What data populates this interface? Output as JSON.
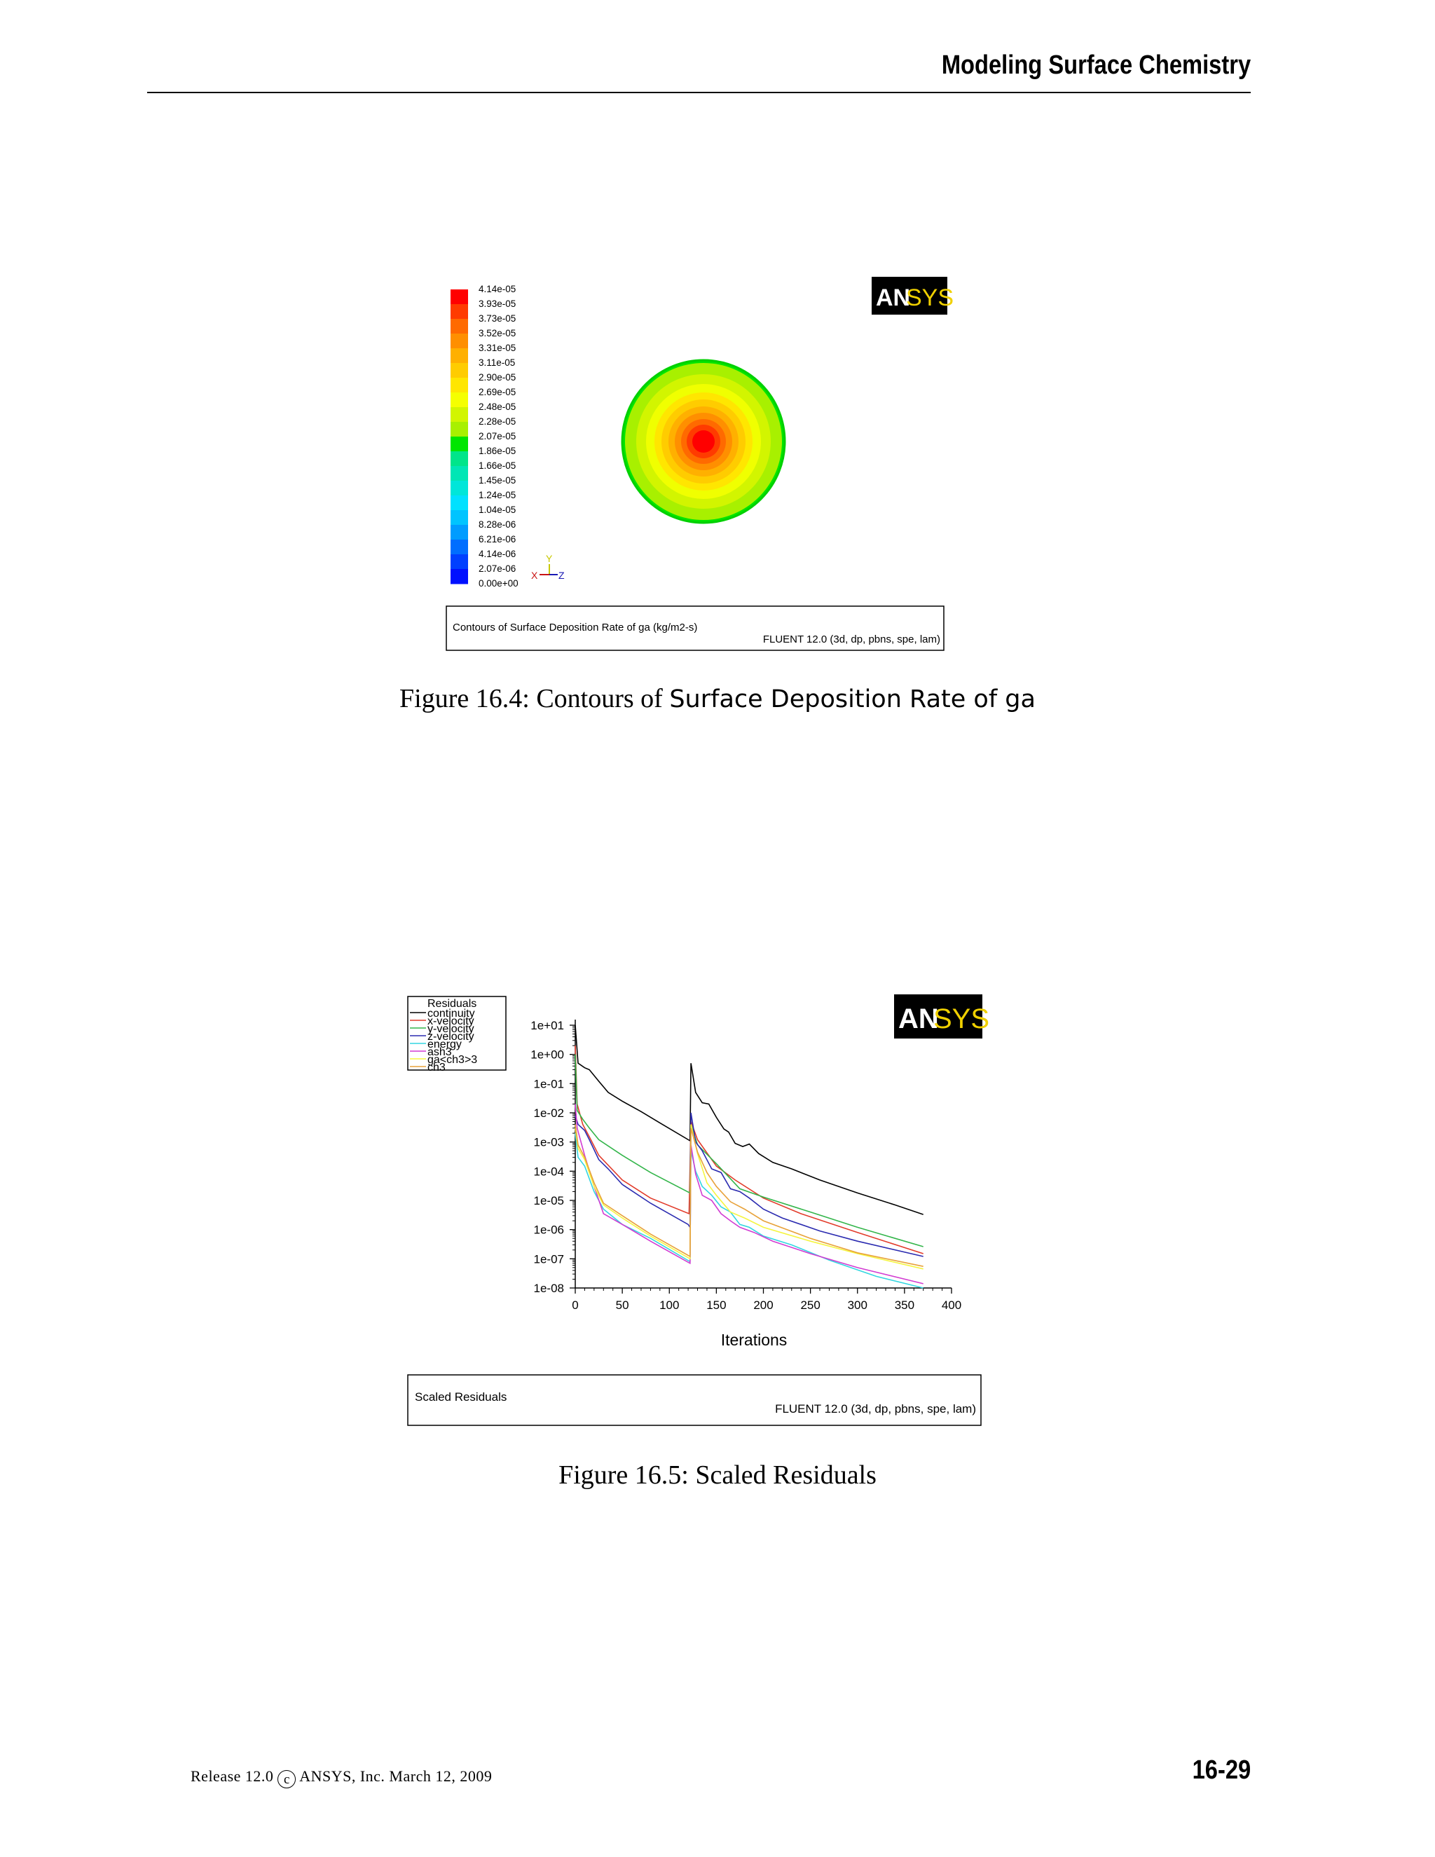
{
  "header": {
    "title": "Modeling Surface Chemistry"
  },
  "figure1": {
    "colorbar": {
      "labels": [
        "4.14e-05",
        "3.93e-05",
        "3.73e-05",
        "3.52e-05",
        "3.31e-05",
        "3.11e-05",
        "2.90e-05",
        "2.69e-05",
        "2.48e-05",
        "2.28e-05",
        "2.07e-05",
        "1.86e-05",
        "1.66e-05",
        "1.45e-05",
        "1.24e-05",
        "1.04e-05",
        "8.28e-06",
        "6.21e-06",
        "4.14e-06",
        "2.07e-06",
        "0.00e+00"
      ],
      "colors": [
        "#ff0000",
        "#ff3b00",
        "#ff6a00",
        "#ff8f00",
        "#ffb000",
        "#ffcc00",
        "#ffe600",
        "#f5ff00",
        "#d2f500",
        "#a8f000",
        "#00e600",
        "#00e58a",
        "#00e6b5",
        "#00e6d9",
        "#00e1ff",
        "#00c4ff",
        "#009cff",
        "#006eff",
        "#0040ff",
        "#0010ff"
      ]
    },
    "axes": {
      "y": "Y",
      "x": "X",
      "z": "Z"
    },
    "logo": {
      "an": "AN",
      "sys": "SYS"
    },
    "info_box": {
      "title": "Contours of Surface Deposition Rate of ga (kg/m2-s)",
      "solver": "FLUENT 12.0 (3d, dp, pbns, spe, lam)"
    },
    "caption": {
      "prefix": "Figure 16.4:  Contours of ",
      "name": "Surface Deposition Rate of ga"
    }
  },
  "figure2": {
    "logo": {
      "an": "AN",
      "sys": "SYS"
    },
    "info_box": {
      "title": "Scaled Residuals",
      "solver": "FLUENT 12.0 (3d, dp, pbns, spe, lam)"
    },
    "caption": "Figure 16.5:  Scaled Residuals"
  },
  "chart_data": {
    "type": "line",
    "xlabel": "Iterations",
    "ylabel": "",
    "y_scale": "log",
    "xlim": [
      0,
      400
    ],
    "ylim": [
      1e-08,
      10
    ],
    "x_ticks": [
      "0",
      "50",
      "100",
      "150",
      "200",
      "250",
      "300",
      "350",
      "400"
    ],
    "y_ticks": [
      "1e+01",
      "1e+00",
      "1e-01",
      "1e-02",
      "1e-03",
      "1e-04",
      "1e-05",
      "1e-06",
      "1e-07",
      "1e-08"
    ],
    "legend": {
      "title": "Residuals",
      "position": "top-left"
    },
    "series": [
      {
        "name": "continuity",
        "color": "#000000",
        "points": [
          [
            0,
            10
          ],
          [
            3,
            0.5
          ],
          [
            10,
            0.35
          ],
          [
            15,
            0.3
          ],
          [
            25,
            0.12
          ],
          [
            35,
            0.05
          ],
          [
            50,
            0.025
          ],
          [
            70,
            0.011
          ],
          [
            90,
            0.0045
          ],
          [
            122,
            0.0011
          ],
          [
            123,
            0.5
          ],
          [
            128,
            0.05
          ],
          [
            135,
            0.022
          ],
          [
            142,
            0.02
          ],
          [
            150,
            0.007
          ],
          [
            158,
            0.0028
          ],
          [
            163,
            0.0022
          ],
          [
            170,
            0.0009
          ],
          [
            178,
            0.0007
          ],
          [
            185,
            0.00085
          ],
          [
            195,
            0.0004
          ],
          [
            210,
            0.0002
          ],
          [
            230,
            0.00012
          ],
          [
            260,
            5e-05
          ],
          [
            300,
            1.8e-05
          ],
          [
            340,
            7e-06
          ],
          [
            370,
            3.3e-06
          ]
        ]
      },
      {
        "name": "x-velocity",
        "color": "#e23b2a",
        "points": [
          [
            0,
            2
          ],
          [
            2,
            0.02
          ],
          [
            8,
            0.004
          ],
          [
            15,
            0.0015
          ],
          [
            25,
            0.00035
          ],
          [
            50,
            5e-05
          ],
          [
            80,
            1.2e-05
          ],
          [
            121,
            3.5e-06
          ],
          [
            123,
            0.005
          ],
          [
            130,
            0.0012
          ],
          [
            150,
            0.00015
          ],
          [
            170,
            5e-05
          ],
          [
            200,
            1.2e-05
          ],
          [
            240,
            3.5e-06
          ],
          [
            300,
            8e-07
          ],
          [
            370,
            1.5e-07
          ]
        ]
      },
      {
        "name": "y-velocity",
        "color": "#33b54a",
        "points": [
          [
            0,
            1
          ],
          [
            2,
            0.012
          ],
          [
            8,
            0.006
          ],
          [
            15,
            0.003
          ],
          [
            25,
            0.0012
          ],
          [
            50,
            0.00035
          ],
          [
            80,
            9e-05
          ],
          [
            122,
            1.8e-05
          ],
          [
            123,
            0.004
          ],
          [
            130,
            0.0008
          ],
          [
            150,
            0.00018
          ],
          [
            175,
            2.5e-05
          ],
          [
            200,
            1.3e-05
          ],
          [
            250,
            4e-06
          ],
          [
            300,
            1.2e-06
          ],
          [
            370,
            2.6e-07
          ]
        ]
      },
      {
        "name": "z-velocity",
        "color": "#2b2bb0",
        "points": [
          [
            0,
            0.008
          ],
          [
            3,
            0.004
          ],
          [
            10,
            0.0025
          ],
          [
            15,
            0.0012
          ],
          [
            25,
            0.00025
          ],
          [
            35,
            0.00012
          ],
          [
            50,
            3.5e-05
          ],
          [
            80,
            8e-06
          ],
          [
            120,
            1.5e-06
          ],
          [
            122,
            1.2e-06
          ],
          [
            123,
            0.01
          ],
          [
            128,
            0.001
          ],
          [
            135,
            0.0005
          ],
          [
            145,
            0.00012
          ],
          [
            155,
            9e-05
          ],
          [
            165,
            2.5e-05
          ],
          [
            175,
            2e-05
          ],
          [
            185,
            1.2e-05
          ],
          [
            200,
            5e-06
          ],
          [
            220,
            2.5e-06
          ],
          [
            260,
            9e-07
          ],
          [
            300,
            4e-07
          ],
          [
            370,
            1.2e-07
          ]
        ]
      },
      {
        "name": "energy",
        "color": "#33d6e0",
        "points": [
          [
            0,
            0.002
          ],
          [
            3,
            0.0003
          ],
          [
            10,
            0.00015
          ],
          [
            20,
            2e-05
          ],
          [
            30,
            5e-06
          ],
          [
            50,
            1.5e-06
          ],
          [
            80,
            5e-07
          ],
          [
            122,
            8e-08
          ],
          [
            123,
            0.0005
          ],
          [
            128,
            0.0001
          ],
          [
            135,
            3e-05
          ],
          [
            145,
            1.5e-05
          ],
          [
            155,
            6e-06
          ],
          [
            165,
            4e-06
          ],
          [
            175,
            1.5e-06
          ],
          [
            185,
            1.2e-06
          ],
          [
            200,
            6e-07
          ],
          [
            230,
            3e-07
          ],
          [
            270,
            9e-08
          ],
          [
            320,
            2.5e-08
          ],
          [
            370,
            1e-08
          ]
        ]
      },
      {
        "name": "ash3",
        "color": "#d23cd2",
        "points": [
          [
            0,
            0.02
          ],
          [
            2,
            0.003
          ],
          [
            10,
            0.00035
          ],
          [
            20,
            3e-05
          ],
          [
            30,
            3.5e-06
          ],
          [
            50,
            1.5e-06
          ],
          [
            80,
            4e-07
          ],
          [
            122,
            7e-08
          ],
          [
            123,
            0.0008
          ],
          [
            128,
            8e-05
          ],
          [
            135,
            1.5e-05
          ],
          [
            145,
            1e-05
          ],
          [
            155,
            3.5e-06
          ],
          [
            165,
            2e-06
          ],
          [
            175,
            1.2e-06
          ],
          [
            190,
            8e-07
          ],
          [
            210,
            4e-07
          ],
          [
            250,
            1.5e-07
          ],
          [
            300,
            5e-08
          ],
          [
            370,
            1.4e-08
          ]
        ]
      },
      {
        "name": "ga<ch3>3",
        "color": "#f5f540",
        "points": [
          [
            0,
            0.003
          ],
          [
            3,
            0.0006
          ],
          [
            10,
            0.00025
          ],
          [
            20,
            3e-05
          ],
          [
            30,
            7e-06
          ],
          [
            50,
            2.5e-06
          ],
          [
            80,
            6e-07
          ],
          [
            122,
            1e-07
          ],
          [
            123,
            0.004
          ],
          [
            130,
            0.0004
          ],
          [
            140,
            4e-05
          ],
          [
            150,
            1.5e-05
          ],
          [
            165,
            4e-06
          ],
          [
            180,
            2.5e-06
          ],
          [
            200,
            1.2e-06
          ],
          [
            250,
            4e-07
          ],
          [
            300,
            1.5e-07
          ],
          [
            370,
            4.5e-08
          ]
        ]
      },
      {
        "name": "ch3",
        "color": "#e8a23a",
        "points": [
          [
            0,
            0.004
          ],
          [
            3,
            0.0008
          ],
          [
            10,
            0.0003
          ],
          [
            20,
            4e-05
          ],
          [
            30,
            8e-06
          ],
          [
            50,
            3e-06
          ],
          [
            80,
            7e-07
          ],
          [
            122,
            1.2e-07
          ],
          [
            123,
            0.003
          ],
          [
            130,
            0.00045
          ],
          [
            140,
            9e-05
          ],
          [
            150,
            3e-05
          ],
          [
            165,
            9e-06
          ],
          [
            180,
            5e-06
          ],
          [
            200,
            2e-06
          ],
          [
            250,
            5e-07
          ],
          [
            300,
            1.6e-07
          ],
          [
            370,
            5.5e-08
          ]
        ]
      }
    ]
  },
  "footer": {
    "release": "Release 12.0 ",
    "copyright_symbol": "c",
    "company_date": " ANSYS, Inc. March 12, 2009",
    "page_number": "16-29"
  }
}
